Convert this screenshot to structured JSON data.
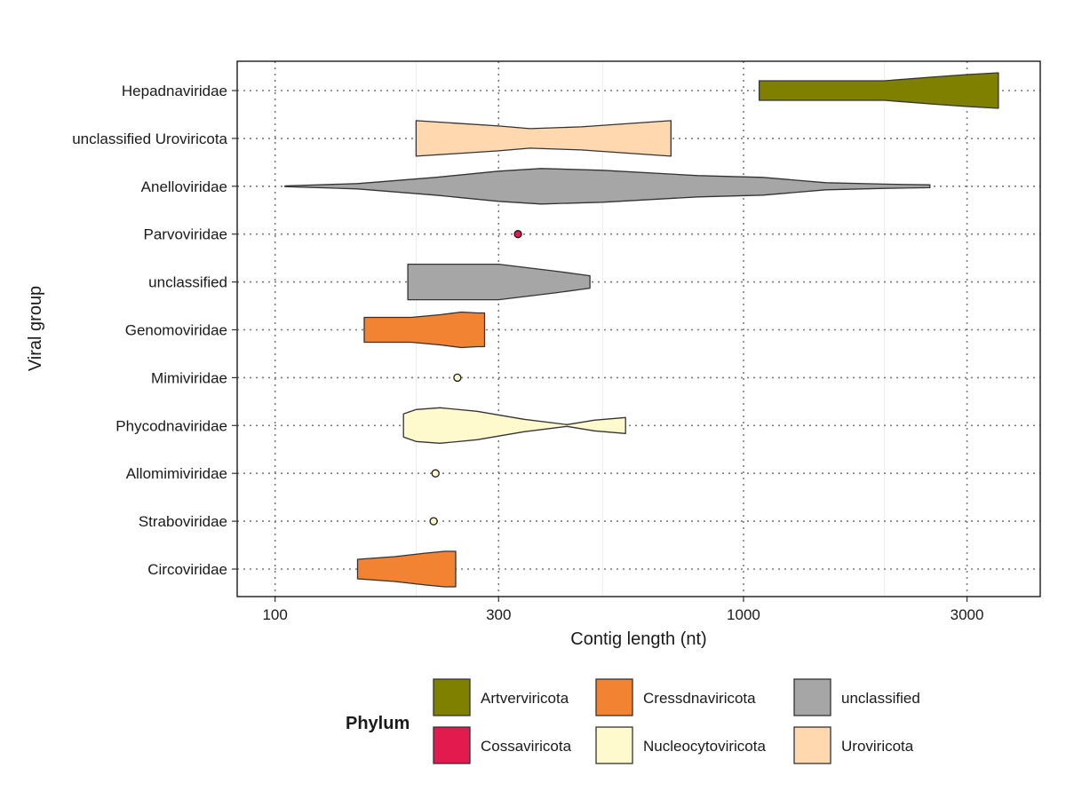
{
  "chart_data": {
    "type": "violin",
    "xlabel": "Contig length (nt)",
    "ylabel": "Viral group",
    "x_scale": "log10",
    "xlim": [
      83,
      4300
    ],
    "x_ticks": [
      100,
      300,
      1000,
      3000
    ],
    "x_tick_labels": [
      "100",
      "300",
      "1000",
      "3000"
    ],
    "grid": true,
    "legend": {
      "title": "Phylum",
      "position": "bottom",
      "entries": [
        {
          "label": "Artverviricota",
          "color": "#808000"
        },
        {
          "label": "Cressdnaviricota",
          "color": "#F28332"
        },
        {
          "label": "unclassified",
          "color": "#A6A6A6"
        },
        {
          "label": "Cossaviricota",
          "color": "#E31A4D"
        },
        {
          "label": "Nucleocytoviricota",
          "color": "#FFFACD"
        },
        {
          "label": "Uroviricota",
          "color": "#FFD8B0"
        }
      ]
    },
    "groups": [
      {
        "name": "Hepadnaviridae",
        "phylum": "Artverviricota",
        "color": "#808000",
        "profile": [
          [
            1080,
            0.55
          ],
          [
            1500,
            0.55
          ],
          [
            2000,
            0.55
          ],
          [
            2500,
            0.75
          ],
          [
            3000,
            0.9
          ],
          [
            3500,
            1.0
          ]
        ]
      },
      {
        "name": "unclassified Uroviricota",
        "phylum": "Uroviricota",
        "color": "#FFD8B0",
        "profile": [
          [
            200,
            1.0
          ],
          [
            300,
            0.7
          ],
          [
            350,
            0.55
          ],
          [
            450,
            0.65
          ],
          [
            700,
            1.0
          ]
        ]
      },
      {
        "name": "Anelloviridae",
        "phylum": "unclassified",
        "color": "#A6A6A6",
        "profile": [
          [
            105,
            0.02
          ],
          [
            150,
            0.15
          ],
          [
            220,
            0.5
          ],
          [
            300,
            0.85
          ],
          [
            370,
            1.0
          ],
          [
            500,
            0.9
          ],
          [
            800,
            0.6
          ],
          [
            1100,
            0.5
          ],
          [
            1500,
            0.2
          ],
          [
            2000,
            0.12
          ],
          [
            2500,
            0.08
          ]
        ]
      },
      {
        "name": "Parvoviridae",
        "phylum": "Cossaviricota",
        "color": "#E31A4D",
        "points": [
          330
        ]
      },
      {
        "name": "unclassified",
        "phylum": "unclassified",
        "color": "#A6A6A6",
        "profile": [
          [
            192,
            1.0
          ],
          [
            300,
            1.0
          ],
          [
            400,
            0.6
          ],
          [
            470,
            0.35
          ]
        ]
      },
      {
        "name": "Genomoviridae",
        "phylum": "Cressdnaviricota",
        "color": "#F28332",
        "profile": [
          [
            155,
            0.7
          ],
          [
            195,
            0.7
          ],
          [
            225,
            0.85
          ],
          [
            250,
            1.0
          ],
          [
            270,
            0.95
          ],
          [
            280,
            0.95
          ]
        ]
      },
      {
        "name": "Mimiviridae",
        "phylum": "Nucleocytoviricota",
        "color": "#FFFACD",
        "points": [
          245
        ]
      },
      {
        "name": "Phycodnaviridae",
        "phylum": "Nucleocytoviricota",
        "color": "#FFFACD",
        "profile": [
          [
            188,
            0.65
          ],
          [
            200,
            0.9
          ],
          [
            225,
            1.0
          ],
          [
            270,
            0.8
          ],
          [
            340,
            0.35
          ],
          [
            420,
            0.05
          ],
          [
            480,
            0.3
          ],
          [
            560,
            0.45
          ]
        ]
      },
      {
        "name": "Allomimiviridae",
        "phylum": "Nucleocytoviricota",
        "color": "#FFFACD",
        "points": [
          220
        ]
      },
      {
        "name": "Straboviridae",
        "phylum": "Nucleocytoviricota",
        "color": "#FFFACD",
        "points": [
          218
        ]
      },
      {
        "name": "Circoviridae",
        "phylum": "Cressdnaviricota",
        "color": "#F28332",
        "profile": [
          [
            150,
            0.55
          ],
          [
            180,
            0.7
          ],
          [
            210,
            0.9
          ],
          [
            230,
            1.0
          ],
          [
            240,
            1.0
          ],
          [
            243,
            1.0
          ]
        ]
      }
    ]
  }
}
